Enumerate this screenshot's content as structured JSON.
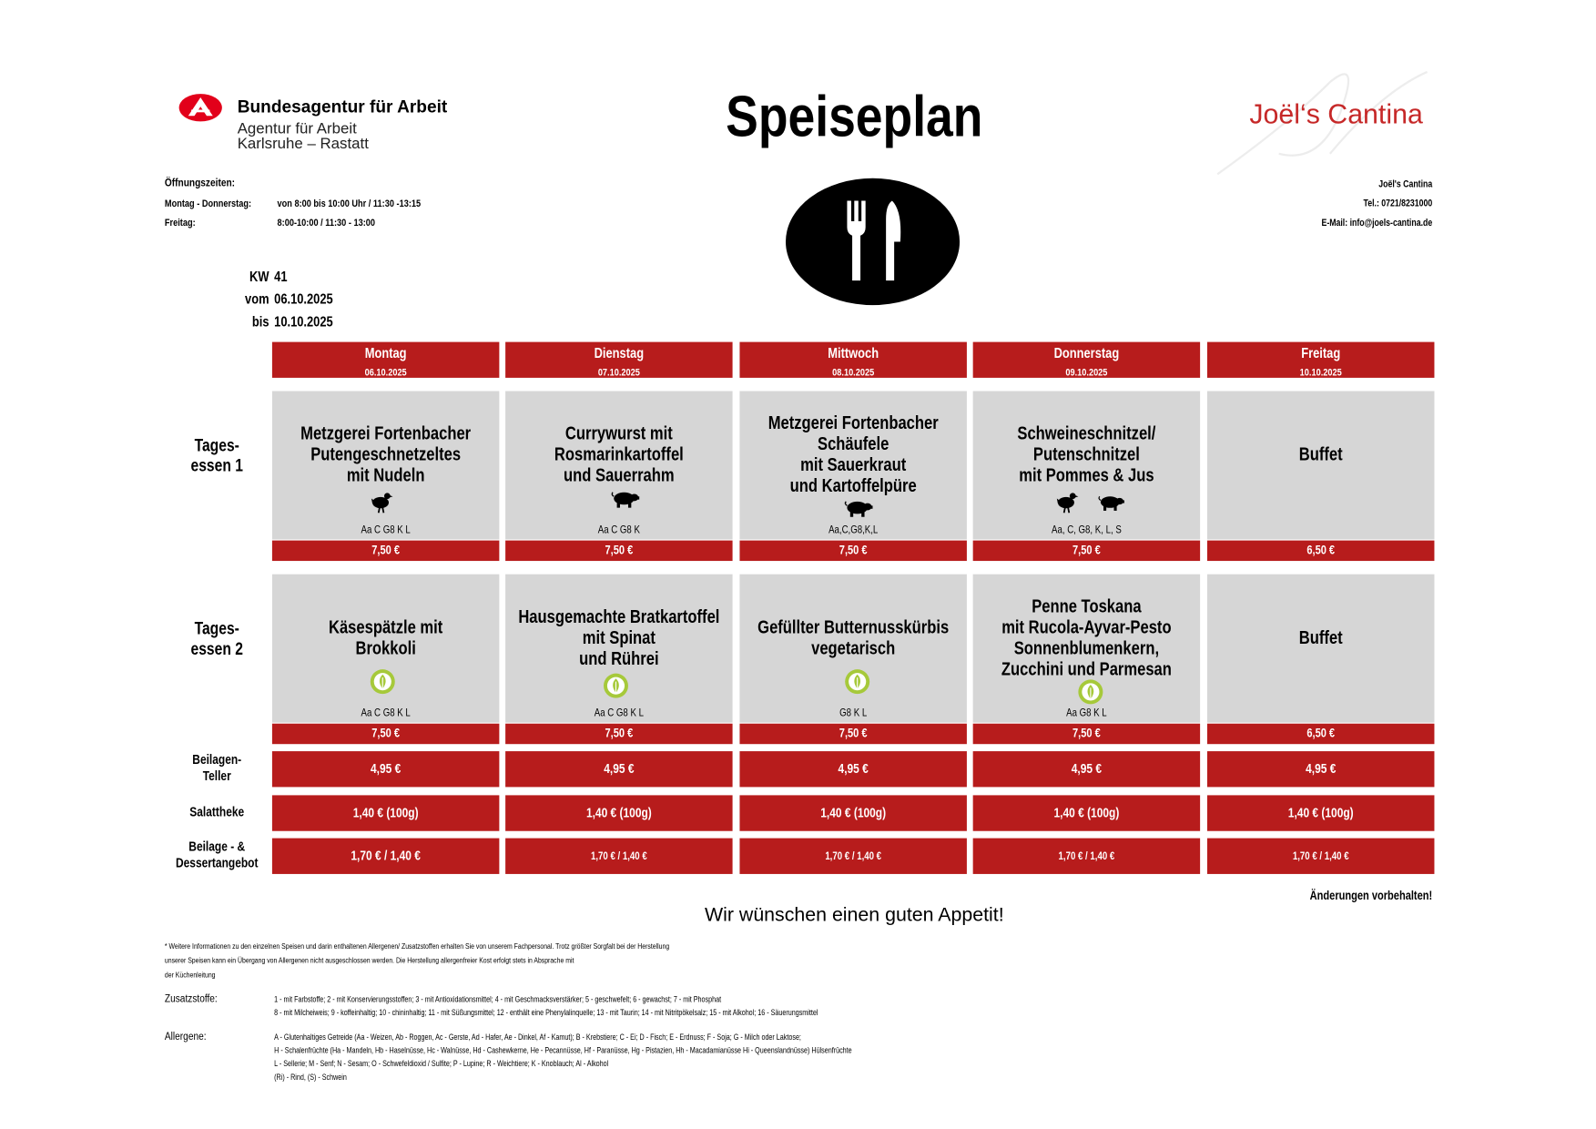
{
  "header": {
    "agency": "Bundesagentur für Arbeit",
    "agency_sub": [
      "Agentur für Arbeit",
      "Karlsruhe – Rastatt"
    ],
    "title": "Speiseplan",
    "brand": "Joël‘s Cantina"
  },
  "opening_hours": {
    "label": "Öffnungszeiten:",
    "rows": [
      [
        "Montag - Donnerstag:",
        "von 8:00 bis 10:00 Uhr  / 11:30 -13:15"
      ],
      [
        "Freitag:",
        "8:00-10:00 / 11:30 - 13:00"
      ]
    ]
  },
  "contact": [
    "Joël's Cantina",
    "Tel.: 0721/8231000",
    "E-Mail: info@joels-cantina.de"
  ],
  "week": [
    [
      "KW",
      "41"
    ],
    [
      "vom",
      "06.10.2025"
    ],
    [
      "bis",
      "10.10.2025"
    ]
  ],
  "days": [
    {
      "name": "Montag",
      "date": "06.10.2025"
    },
    {
      "name": "Dienstag",
      "date": "07.10.2025"
    },
    {
      "name": "Mittwoch",
      "date": "08.10.2025"
    },
    {
      "name": "Donnerstag",
      "date": "09.10.2025"
    },
    {
      "name": "Freitag",
      "date": "10.10.2025"
    }
  ],
  "rows": [
    {
      "label": [
        "Tages-",
        "essen 1"
      ],
      "cells": [
        {
          "title": [
            "Metzgerei Fortenbacher",
            "Putengeschnetzeltes",
            "mit Nudeln"
          ],
          "allergens": "Aa C G8 K L",
          "price": "7,50 €"
        },
        {
          "title": [
            "Currywurst mit",
            "Rosmarinkartoffel",
            "und Sauerrahm"
          ],
          "allergens": "Aa C G8 K",
          "price": "7,50 €"
        },
        {
          "title": [
            "Metzgerei Fortenbacher",
            "Schäufele",
            "mit Sauerkraut",
            "und Kartoffelpüre"
          ],
          "allergens": "Aa,C,G8,K,L",
          "price": "7,50 €"
        },
        {
          "title": [
            "Schweineschnitzel/",
            "Putenschnitzel",
            "mit Pommes & Jus"
          ],
          "allergens": "Aa, C, G8, K, L, S",
          "price": "7,50 €"
        },
        {
          "title": [
            "Buffet"
          ],
          "price": "6,50 €"
        }
      ]
    },
    {
      "label": [
        "Tages-",
        "essen 2"
      ],
      "cells": [
        {
          "title": [
            "Käsespätzle mit",
            "Brokkoli"
          ],
          "allergens": "Aa C G8 K L",
          "price": "7,50 €"
        },
        {
          "title": [
            "Hausgemachte Bratkartoffel",
            "mit Spinat",
            "und Rührei"
          ],
          "allergens": "Aa C G8 K L",
          "price": "7,50 €"
        },
        {
          "title": [
            "Gefüllter Butternusskürbis",
            "vegetarisch"
          ],
          "allergens": "G8 K L",
          "price": "7,50 €"
        },
        {
          "title": [
            "Penne Toskana",
            "mit Rucola-Ayvar-Pesto",
            "Sonnenblumenkern,",
            "Zucchini und Parmesan"
          ],
          "allergens": "Aa G8 K L",
          "price": "7,50 €"
        },
        {
          "title": [
            "Buffet"
          ],
          "price": "6,50 €"
        }
      ]
    },
    {
      "label": [
        "Beilagen-",
        "Teller"
      ],
      "prices": [
        "4,95 €",
        "4,95 €",
        "4,95 €",
        "4,95 €",
        "4,95 €"
      ]
    },
    {
      "label": [
        "Salattheke"
      ],
      "prices": [
        "1,40 € (100g)",
        "1,40 € (100g)",
        "1,40 € (100g)",
        "1,40 € (100g)",
        "1,40 € (100g)"
      ]
    },
    {
      "label": [
        "Beilage - &",
        "Dessertangebot"
      ],
      "prices": [
        "1,70 € / 1,40 €",
        "1,70 € / 1,40 €",
        "1,70 € / 1,40 €",
        "1,70 € / 1,40 €",
        "1,70 € / 1,40 €"
      ]
    }
  ],
  "notice": "Änderungen vorbehalten!",
  "greeting": "Wir wünschen einen guten Appetit!",
  "disclaimer": [
    "* Weitere Informationen zu den einzelnen Speisen und darin enthaltenen Allergenen/ Zusatzstoffen erhalten Sie von unserem Fachpersonal. Trotz größter Sorgfalt bei der Herstellung",
    " unserer Speisen kann ein Übergang von Allergenen nicht ausgeschlossen werden. Die Herstellung allergenfreier Kost erfolgt stets in Absprache mit",
    "der Küchenleitung"
  ],
  "additives": {
    "label": "Zusatzstoffe:",
    "lines": [
      "1 - mit Farbstoffe; 2 - mit Konservierungsstoffen; 3 - mit Antioxidationsmittel; 4 - mit Geschmacksverstärker; 5 - geschwefelt; 6 - gewachst; 7 - mit Phosphat",
      "8 - mit Milcheiweis; 9 - koffeinhaltig; 10 - chininhaltig; 11 - mit Süßungsmittel; 12 - enthält eine Phenylalinquelle; 13 - mit Taurin; 14 - mit Nitritpökelsalz; 15 - mit Alkohol; 16 - Säuerungsmittel"
    ]
  },
  "allergens": {
    "label": "Allergene:",
    "lines": [
      "A - Glutenhaltiges Getreide (Aa - Weizen, Ab - Roggen, Ac - Gerste, Ad - Hafer, Ae - Dinkel, Af - Kamut); B - Krebstiere; C - Ei; D - Fisch; E - Erdnuss; F - Soja; G - Milch oder Laktose;",
      "H - Schalenfrüchte (Ha - Mandeln, Hb - Haselnüsse, Hc - Walnüsse, Hd - Cashewkerne, He - Pecannüsse, Hf - Paranüsse, Hg - Pistazien, Hh - Macadamianüsse Hi - Queenslandnüsse) Hülsenfrüchte",
      "L - Sellerie; M - Senf; N - Sesam; O - Schwefeldioxid / Sulfite; P - Lupine; R - Weichtiere; K - Knoblauch; Al - Alkohol",
      "(Ri) - Rind, (S) - Schwein"
    ]
  }
}
